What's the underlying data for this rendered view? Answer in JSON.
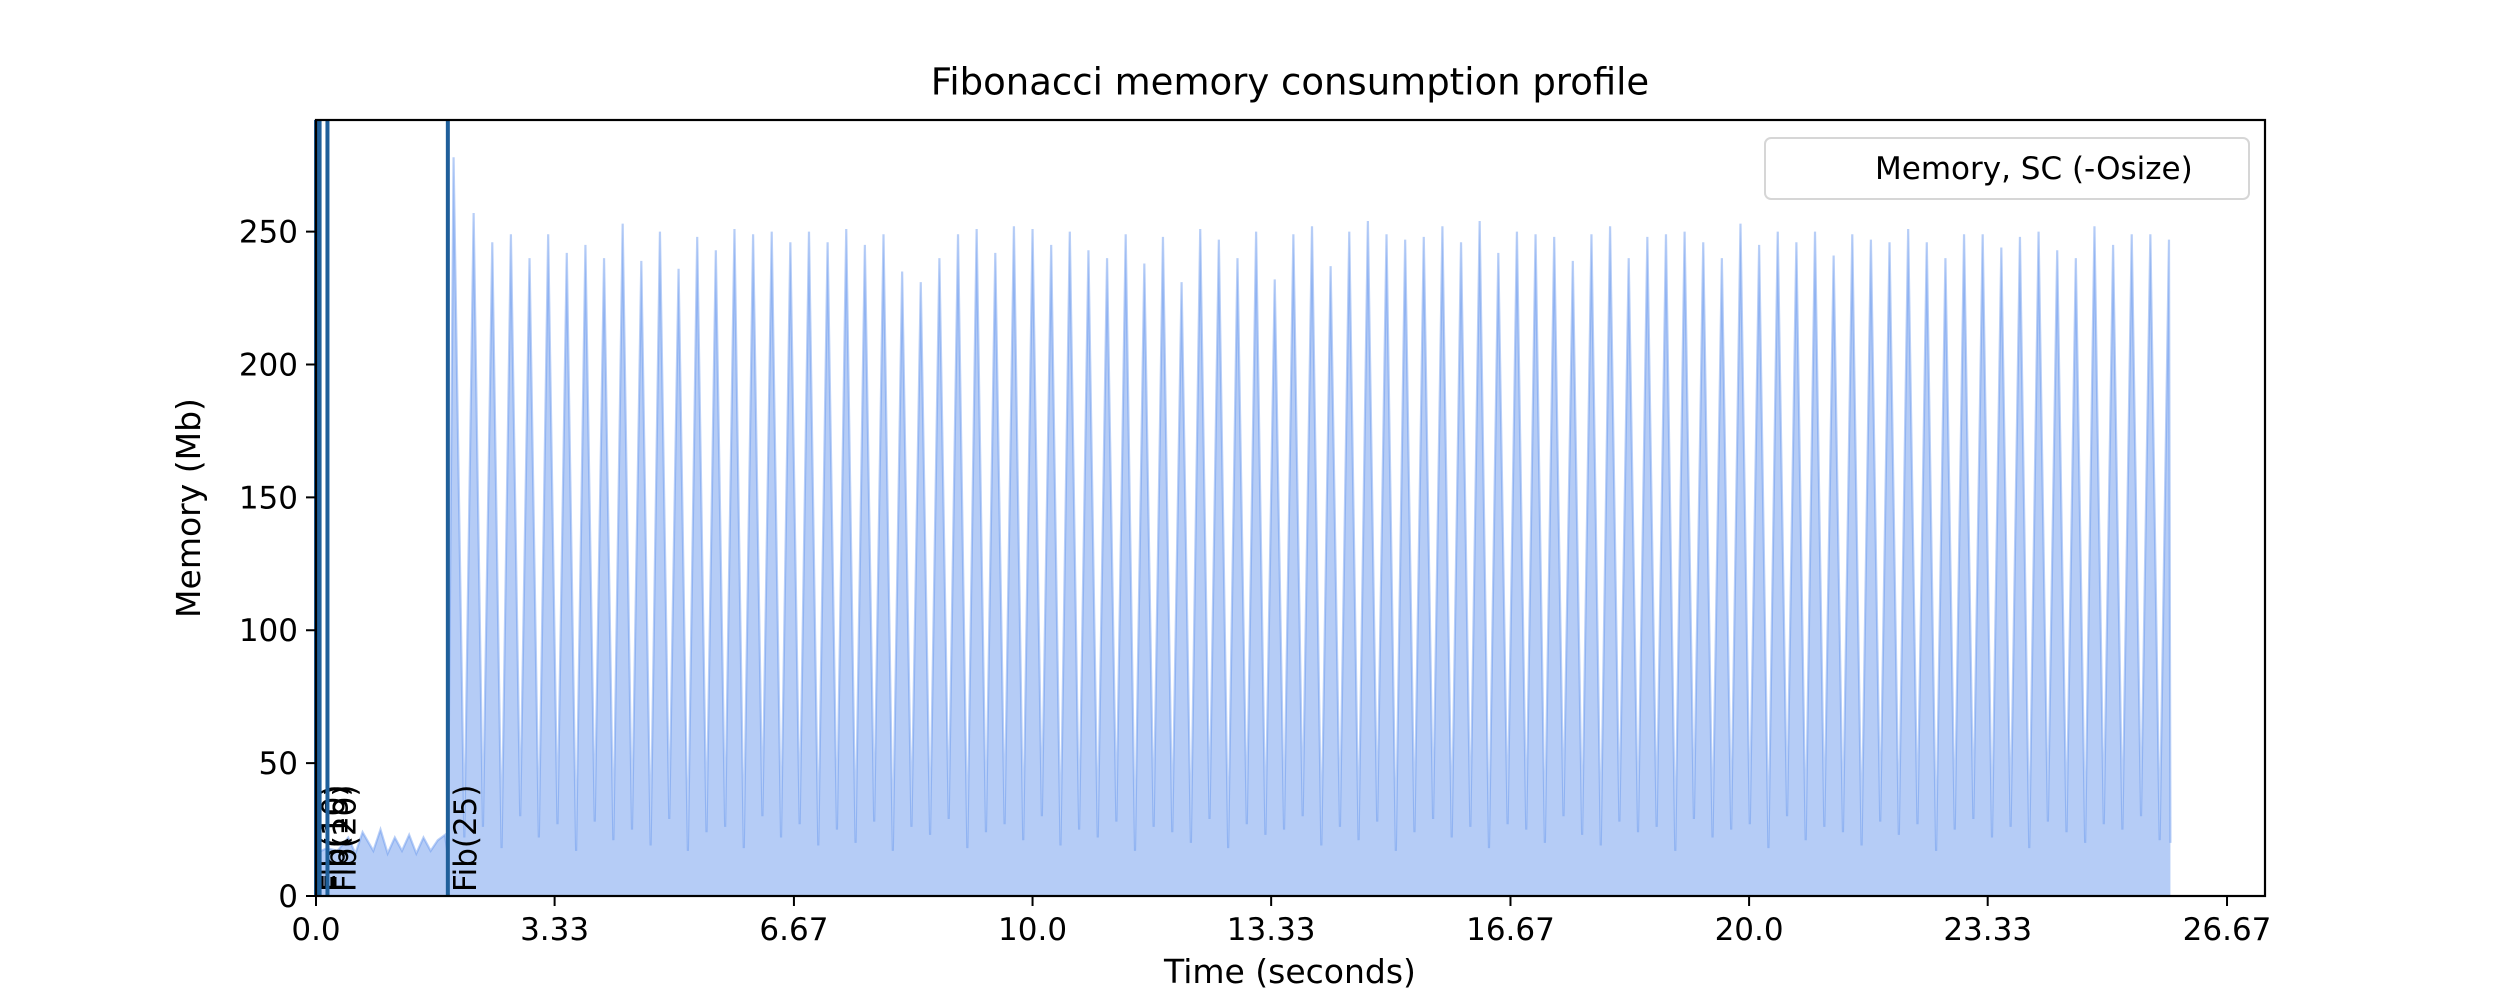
{
  "chart_data": {
    "type": "area",
    "title": "Fibonacci memory consumption profile",
    "x_label": "Time (seconds)",
    "y_label": "Memory (Mb)",
    "xlim": [
      0,
      27.2
    ],
    "ylim": [
      0,
      292
    ],
    "xticks": [
      {
        "value": 0,
        "label": "0.0"
      },
      3.33,
      6.67,
      {
        "value": 10,
        "label": "10.0"
      },
      13.33,
      16.67,
      {
        "value": 20,
        "label": "20.0"
      },
      23.33,
      26.67
    ],
    "yticks": [
      0,
      50,
      100,
      150,
      200,
      250
    ],
    "legend": "upper right",
    "vlines": {
      "color": "#1f5f9a",
      "x": [
        0.0,
        0.05,
        0.16,
        1.84
      ],
      "labels": [
        "Fib(10)",
        "Fib(15)",
        "Fib(20)",
        "Fib(25)"
      ]
    },
    "x": [
      0,
      0.15,
      0.3,
      0.45,
      0.55,
      0.65,
      0.8,
      0.9,
      1.0,
      1.1,
      1.2,
      1.3,
      1.4,
      1.5,
      1.6,
      1.7,
      1.8,
      1.84,
      1.92,
      2.07,
      2.2,
      2.33,
      2.46,
      2.59,
      2.72,
      2.85,
      2.98,
      3.11,
      3.24,
      3.37,
      3.5,
      3.63,
      3.76,
      3.89,
      4.02,
      4.15,
      4.28,
      4.41,
      4.54,
      4.67,
      4.8,
      4.93,
      5.06,
      5.19,
      5.32,
      5.45,
      5.58,
      5.71,
      5.84,
      5.97,
      6.1,
      6.23,
      6.36,
      6.49,
      6.62,
      6.75,
      6.88,
      7.01,
      7.14,
      7.27,
      7.4,
      7.53,
      7.66,
      7.79,
      7.92,
      8.05,
      8.18,
      8.31,
      8.44,
      8.57,
      8.7,
      8.83,
      8.96,
      9.09,
      9.22,
      9.35,
      9.48,
      9.61,
      9.74,
      9.87,
      10.0,
      10.13,
      10.26,
      10.39,
      10.52,
      10.65,
      10.78,
      10.91,
      11.04,
      11.17,
      11.3,
      11.43,
      11.56,
      11.69,
      11.82,
      11.95,
      12.08,
      12.21,
      12.34,
      12.47,
      12.6,
      12.73,
      12.86,
      12.99,
      13.12,
      13.25,
      13.38,
      13.51,
      13.64,
      13.77,
      13.9,
      14.03,
      14.16,
      14.29,
      14.42,
      14.55,
      14.68,
      14.81,
      14.94,
      15.07,
      15.2,
      15.33,
      15.46,
      15.59,
      15.72,
      15.85,
      15.98,
      16.11,
      16.24,
      16.37,
      16.5,
      16.63,
      16.76,
      16.89,
      17.02,
      17.15,
      17.28,
      17.41,
      17.54,
      17.67,
      17.8,
      17.93,
      18.06,
      18.19,
      18.32,
      18.45,
      18.58,
      18.71,
      18.84,
      18.97,
      19.1,
      19.23,
      19.36,
      19.49,
      19.62,
      19.75,
      19.88,
      20.01,
      20.14,
      20.27,
      20.4,
      20.53,
      20.66,
      20.79,
      20.92,
      21.05,
      21.18,
      21.31,
      21.44,
      21.57,
      21.7,
      21.83,
      21.96,
      22.09,
      22.22,
      22.35,
      22.48,
      22.61,
      22.74,
      22.87,
      23.0,
      23.13,
      23.26,
      23.39,
      23.52,
      23.65,
      23.78,
      23.91,
      24.04,
      24.17,
      24.3,
      24.43,
      24.56,
      24.69,
      24.82,
      24.95,
      25.08,
      25.21,
      25.34,
      25.47,
      25.6,
      25.73,
      25.86,
      25.88
    ],
    "series": [
      {
        "name": "Memory, SC (-Osize)",
        "color": "#6495ed",
        "values": [
          16,
          18,
          17,
          22,
          16,
          24,
          17,
          25,
          16,
          22,
          17,
          23,
          16,
          22,
          17,
          21,
          23,
          15,
          278,
          22,
          257,
          26,
          246,
          18,
          249,
          30,
          240,
          22,
          249,
          27,
          242,
          17,
          245,
          28,
          240,
          21,
          253,
          25,
          239,
          19,
          250,
          29,
          236,
          17,
          248,
          24,
          243,
          26,
          251,
          18,
          249,
          30,
          250,
          22,
          246,
          27,
          250,
          19,
          246,
          25,
          251,
          20,
          245,
          28,
          249,
          17,
          235,
          26,
          231,
          23,
          240,
          29,
          249,
          18,
          251,
          24,
          242,
          27,
          252,
          21,
          251,
          30,
          245,
          19,
          250,
          25,
          243,
          22,
          240,
          28,
          249,
          17,
          238,
          26,
          248,
          24,
          231,
          20,
          251,
          29,
          247,
          18,
          240,
          27,
          250,
          23,
          232,
          25,
          249,
          30,
          252,
          19,
          237,
          26,
          250,
          21,
          254,
          28,
          249,
          17,
          247,
          24,
          248,
          29,
          252,
          22,
          246,
          26,
          254,
          18,
          242,
          27,
          250,
          25,
          249,
          20,
          248,
          30,
          239,
          23,
          249,
          19,
          252,
          28,
          240,
          24,
          248,
          26,
          249,
          17,
          250,
          29,
          246,
          22,
          240,
          25,
          253,
          27,
          245,
          18,
          250,
          30,
          246,
          21,
          250,
          26,
          241,
          24,
          249,
          19,
          247,
          28,
          246,
          23,
          251,
          27,
          246,
          17,
          240,
          25,
          249,
          29,
          249,
          22,
          244,
          26,
          248,
          18,
          250,
          28,
          243,
          24,
          240,
          20,
          252,
          27,
          245,
          25,
          249,
          30,
          249,
          21,
          247,
          20
        ]
      }
    ]
  }
}
